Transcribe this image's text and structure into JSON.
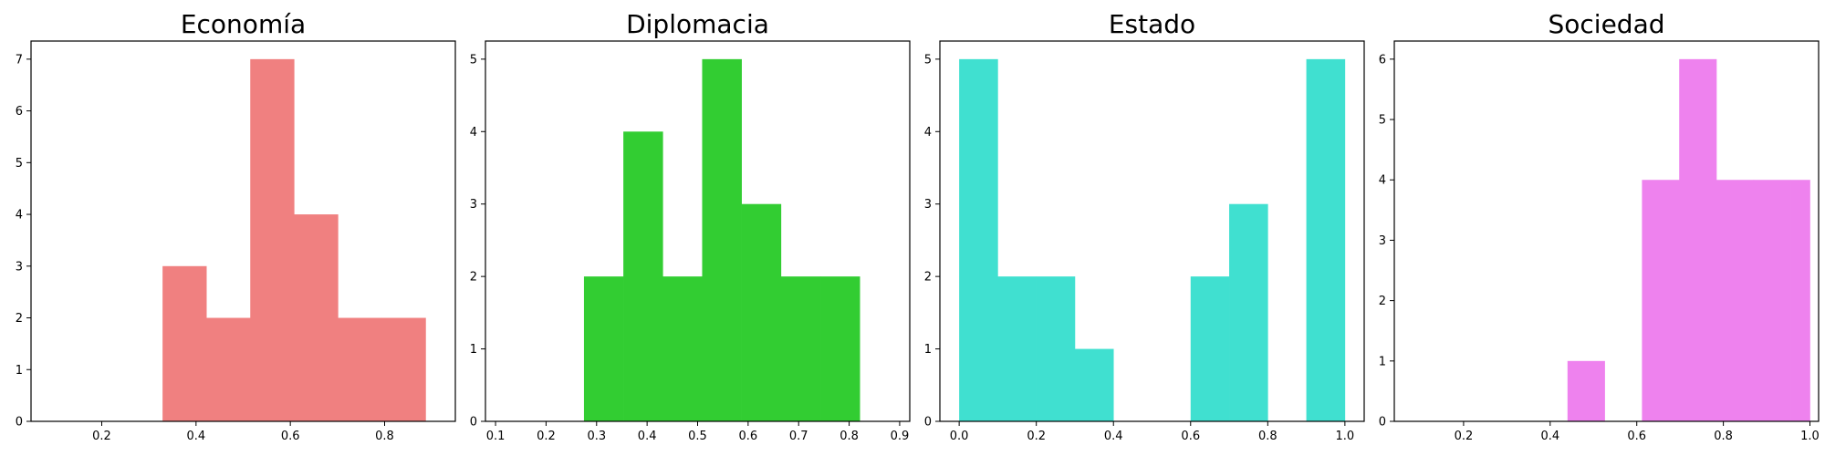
{
  "chart_data": [
    {
      "type": "bar",
      "subtype": "histogram",
      "title": "Economía",
      "color": "#F08080",
      "xlim": [
        0.05,
        0.95
      ],
      "ylim": [
        0,
        7.35
      ],
      "xticks": [
        "0.2",
        "0.4",
        "0.6",
        "0.8"
      ],
      "xtick_values": [
        0.2,
        0.4,
        0.6,
        0.8
      ],
      "yticks": [
        "0",
        "1",
        "2",
        "3",
        "4",
        "5",
        "6",
        "7"
      ],
      "ytick_values": [
        0,
        1,
        2,
        3,
        4,
        5,
        6,
        7
      ],
      "bin_edges": [
        0.05,
        0.143,
        0.236,
        0.329,
        0.422,
        0.515,
        0.608,
        0.701,
        0.794,
        0.887
      ],
      "values": [
        0,
        0,
        0,
        3,
        2,
        7,
        4,
        2,
        2
      ]
    },
    {
      "type": "bar",
      "subtype": "histogram",
      "title": "Diplomacia",
      "color": "#32CD32",
      "xlim": [
        0.08,
        0.92
      ],
      "ylim": [
        0,
        5.25
      ],
      "xticks": [
        "0.1",
        "0.2",
        "0.3",
        "0.4",
        "0.5",
        "0.6",
        "0.7",
        "0.8",
        "0.9"
      ],
      "xtick_values": [
        0.1,
        0.2,
        0.3,
        0.4,
        0.5,
        0.6,
        0.7,
        0.8,
        0.9
      ],
      "yticks": [
        "0",
        "1",
        "2",
        "3",
        "4",
        "5"
      ],
      "ytick_values": [
        0,
        1,
        2,
        3,
        4,
        5
      ],
      "bin_edges": [
        0.275,
        0.353,
        0.431,
        0.509,
        0.587,
        0.665,
        0.743,
        0.821
      ],
      "values": [
        2,
        4,
        2,
        5,
        3,
        2,
        2
      ]
    },
    {
      "type": "bar",
      "subtype": "histogram",
      "title": "Estado",
      "color": "#40E0D0",
      "xlim": [
        -0.05,
        1.05
      ],
      "ylim": [
        0,
        5.25
      ],
      "xticks": [
        "0.0",
        "0.2",
        "0.4",
        "0.6",
        "0.8",
        "1.0"
      ],
      "xtick_values": [
        0.0,
        0.2,
        0.4,
        0.6,
        0.8,
        1.0
      ],
      "yticks": [
        "0",
        "1",
        "2",
        "3",
        "4",
        "5"
      ],
      "ytick_values": [
        0,
        1,
        2,
        3,
        4,
        5
      ],
      "bin_edges": [
        0.0,
        0.1,
        0.2,
        0.3,
        0.4,
        0.5,
        0.6,
        0.7,
        0.8,
        0.9,
        1.0
      ],
      "values": [
        5,
        2,
        2,
        1,
        0,
        0,
        2,
        3,
        0,
        5
      ]
    },
    {
      "type": "bar",
      "subtype": "histogram",
      "title": "Sociedad",
      "color": "#EE82EE",
      "xlim": [
        0.04,
        1.02
      ],
      "ylim": [
        0,
        6.3
      ],
      "xticks": [
        "0.2",
        "0.4",
        "0.6",
        "0.8",
        "1.0"
      ],
      "xtick_values": [
        0.2,
        0.4,
        0.6,
        0.8,
        1.0
      ],
      "yticks": [
        "0",
        "1",
        "2",
        "3",
        "4",
        "5",
        "6"
      ],
      "ytick_values": [
        0,
        1,
        2,
        3,
        4,
        5,
        6
      ],
      "bin_edges": [
        0.44,
        0.526,
        0.612,
        0.698,
        0.784,
        0.87,
        0.956,
        1.0
      ],
      "values": [
        1,
        0,
        4,
        6,
        4,
        4,
        4
      ]
    }
  ]
}
